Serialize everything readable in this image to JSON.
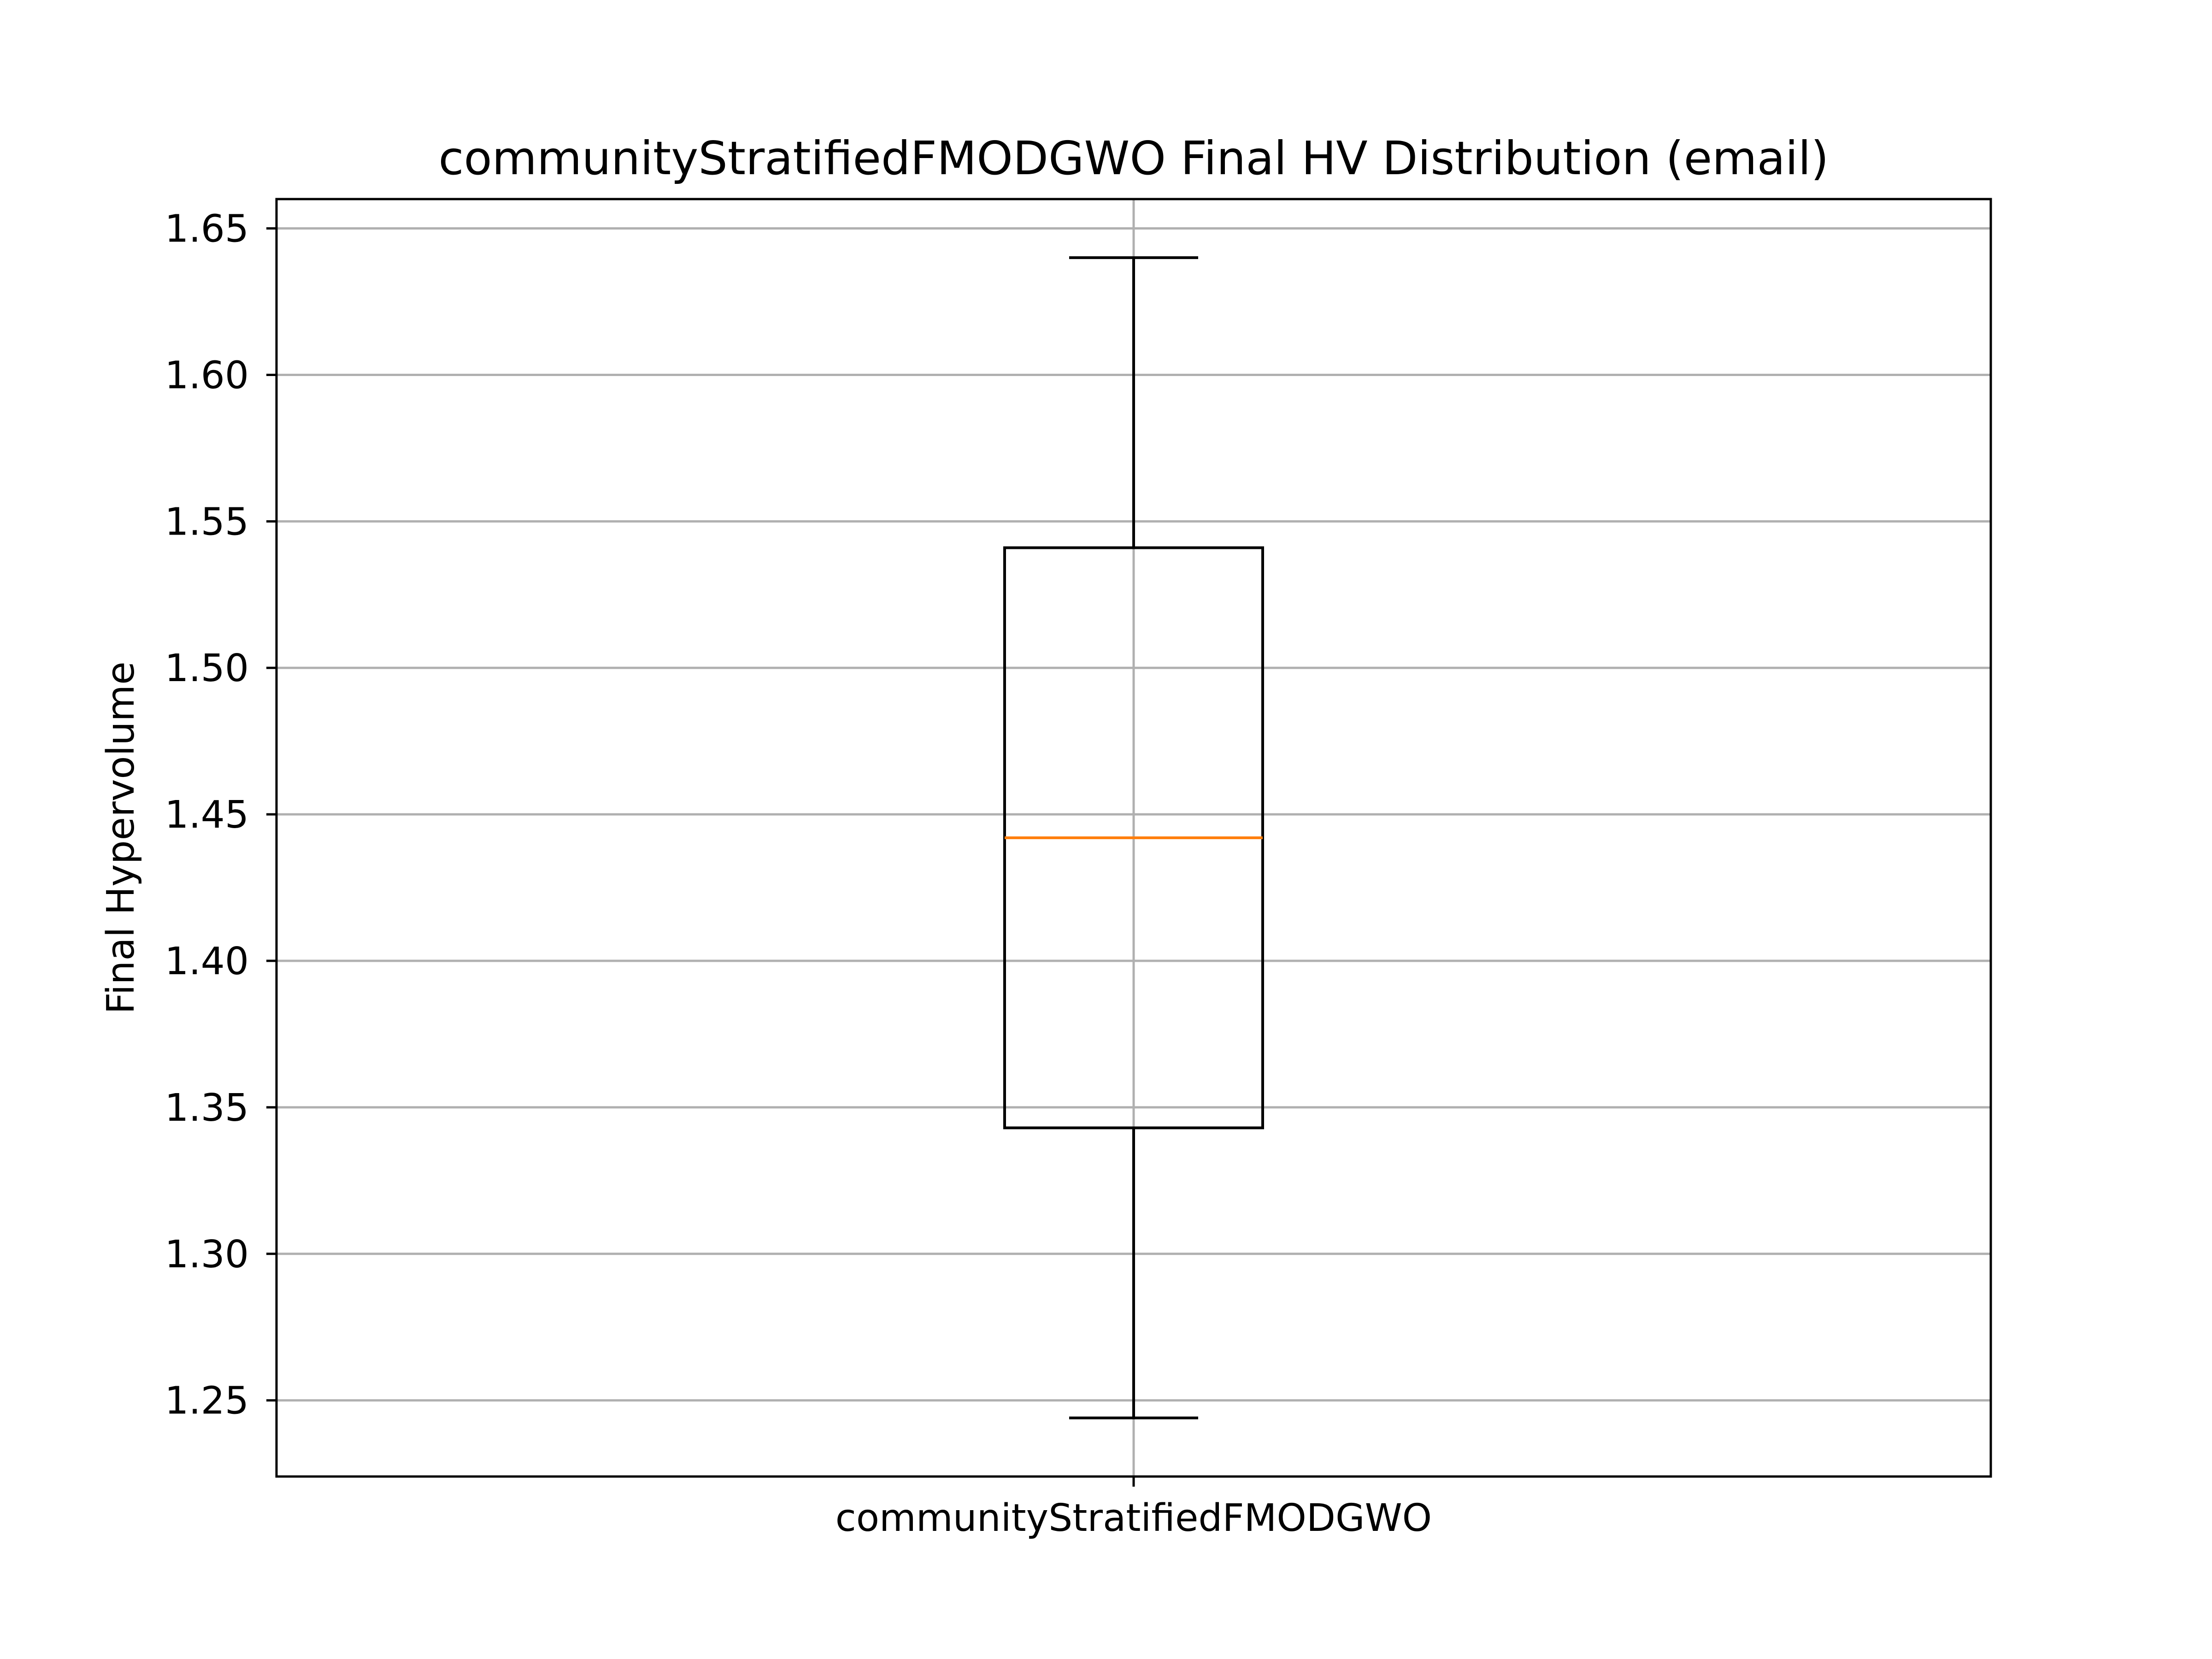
{
  "chart_data": {
    "type": "box",
    "title": "communityStratifiedFMODGWO Final HV Distribution (email)",
    "xlabel": "",
    "ylabel": "Final Hypervolume",
    "categories": [
      "communityStratifiedFMODGWO"
    ],
    "ylim": [
      1.224,
      1.66
    ],
    "yticks": [
      1.25,
      1.3,
      1.35,
      1.4,
      1.45,
      1.5,
      1.55,
      1.6,
      1.65
    ],
    "ytick_labels": [
      "1.25",
      "1.30",
      "1.35",
      "1.40",
      "1.45",
      "1.50",
      "1.55",
      "1.60",
      "1.65"
    ],
    "grid": true,
    "boxes": [
      {
        "category": "communityStratifiedFMODGWO",
        "whisker_low": 1.244,
        "q1": 1.343,
        "median": 1.442,
        "q3": 1.541,
        "whisker_high": 1.64
      }
    ],
    "colors": {
      "box": "#000000",
      "median": "#ff7f0e",
      "grid": "#b0b0b0"
    }
  }
}
